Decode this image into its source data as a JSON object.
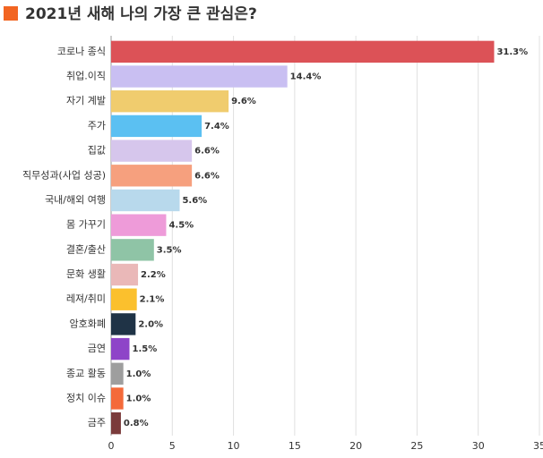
{
  "chart_data": {
    "type": "bar",
    "orientation": "horizontal",
    "title": "2021년 새해 나의 가장 큰 관심은?",
    "title_marker_color": "#f26522",
    "categories": [
      "코로나 종식",
      "취업.이직",
      "자기 계발",
      "주가",
      "집값",
      "직무성과(사업 성공)",
      "국내/해외 여행",
      "몸 가꾸기",
      "결혼/출산",
      "문화 생활",
      "레져/취미",
      "암호화폐",
      "금연",
      "종교 활동",
      "정치 이슈",
      "금주"
    ],
    "values": [
      31.3,
      14.4,
      9.6,
      7.4,
      6.6,
      6.6,
      5.6,
      4.5,
      3.5,
      2.2,
      2.1,
      2.0,
      1.5,
      1.0,
      1.0,
      0.8
    ],
    "value_labels": [
      "31.3%",
      "14.4%",
      "9.6%",
      "7.4%",
      "6.6%",
      "6.6%",
      "5.6%",
      "4.5%",
      "3.5%",
      "2.2%",
      "2.1%",
      "2.0%",
      "1.5%",
      "1.0%",
      "1.0%",
      "0.8%"
    ],
    "colors": [
      "#dc5257",
      "#c9bff2",
      "#f0cc6e",
      "#5bc0f2",
      "#d6c6ec",
      "#f6a07e",
      "#b8d9ec",
      "#ee9bd9",
      "#8fc4a6",
      "#eab8b8",
      "#fbc02d",
      "#1f3346",
      "#8e44c8",
      "#9e9e9e",
      "#f46a3a",
      "#7a3b3b"
    ],
    "xlim": [
      0,
      35
    ],
    "xticks": [
      0,
      5,
      10,
      15,
      20,
      25,
      30,
      35
    ],
    "grid": true
  }
}
